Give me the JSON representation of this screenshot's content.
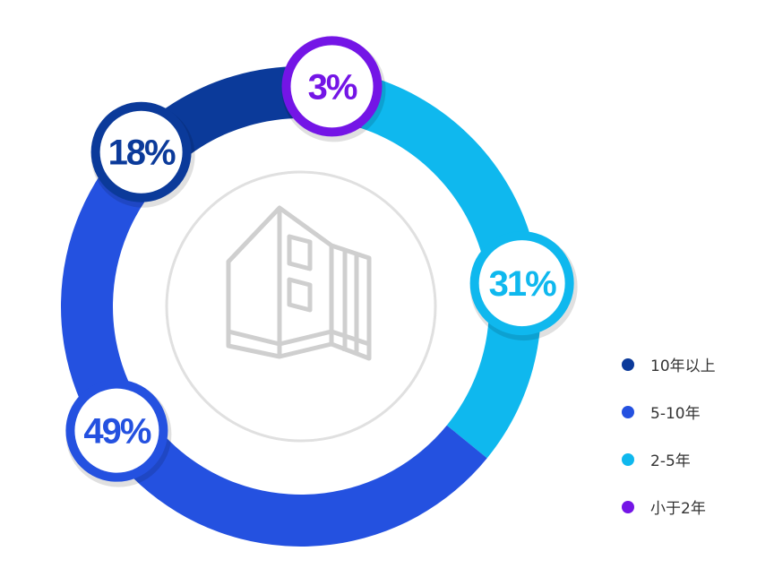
{
  "chart_data": {
    "type": "donut",
    "series": [
      {
        "name": "10年以上",
        "value": 18,
        "label": "18%",
        "color": "#0b3a9a"
      },
      {
        "name": "5-10年",
        "value": 49,
        "label": "49%",
        "color": "#2451e0"
      },
      {
        "name": "2-5年",
        "value": 31,
        "label": "31%",
        "color": "#0fb8ee"
      },
      {
        "name": "小于2年",
        "value": 3,
        "label": "3%",
        "color": "#7415e6"
      }
    ],
    "legend_position": "bottom-right",
    "center_icon": "building-outline-icon"
  }
}
